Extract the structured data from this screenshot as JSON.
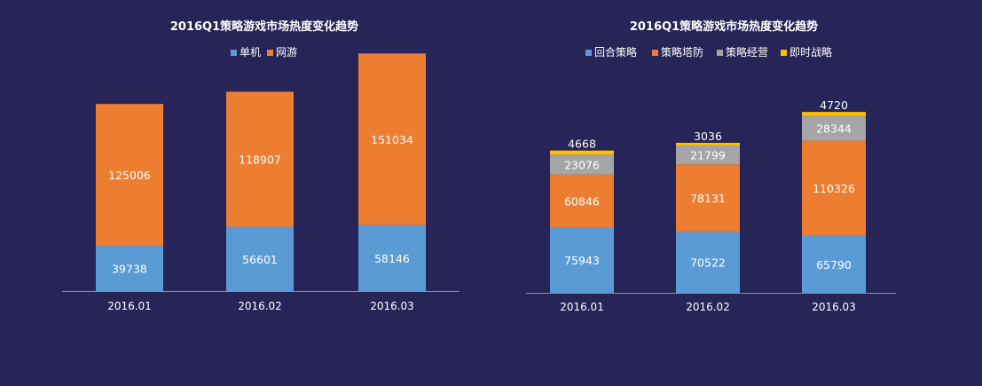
{
  "chart_data": [
    {
      "type": "bar",
      "stacked": true,
      "title": "2016Q1策略游戏市场热度变化趋势",
      "categories": [
        "2016.01",
        "2016.02",
        "2016.03"
      ],
      "series": [
        {
          "name": "单机",
          "values": [
            39738,
            56601,
            58146
          ],
          "color": "#5B9BD5"
        },
        {
          "name": "网游",
          "values": [
            125006,
            118907,
            151034
          ],
          "color": "#ED7D31"
        }
      ],
      "legend_position": "top",
      "xlabel": "",
      "ylabel": "",
      "ylim": [
        0,
        215000
      ],
      "grid": false
    },
    {
      "type": "bar",
      "stacked": true,
      "title": "2016Q1策略游戏市场热度变化趋势",
      "categories": [
        "2016.01",
        "2016.02",
        "2016.03"
      ],
      "series": [
        {
          "name": "回合策略",
          "values": [
            75943,
            70522,
            65790
          ],
          "color": "#5B9BD5"
        },
        {
          "name": "策略塔防",
          "values": [
            60846,
            78131,
            110326
          ],
          "color": "#ED7D31"
        },
        {
          "name": "策略经营",
          "values": [
            23076,
            21799,
            28344
          ],
          "color": "#A5A5A5"
        },
        {
          "name": "即时战略",
          "values": [
            4668,
            3036,
            4720
          ],
          "color": "#FFC000"
        }
      ],
      "legend_position": "top",
      "xlabel": "",
      "ylabel": "",
      "ylim": [
        0,
        220000
      ],
      "grid": false
    }
  ]
}
